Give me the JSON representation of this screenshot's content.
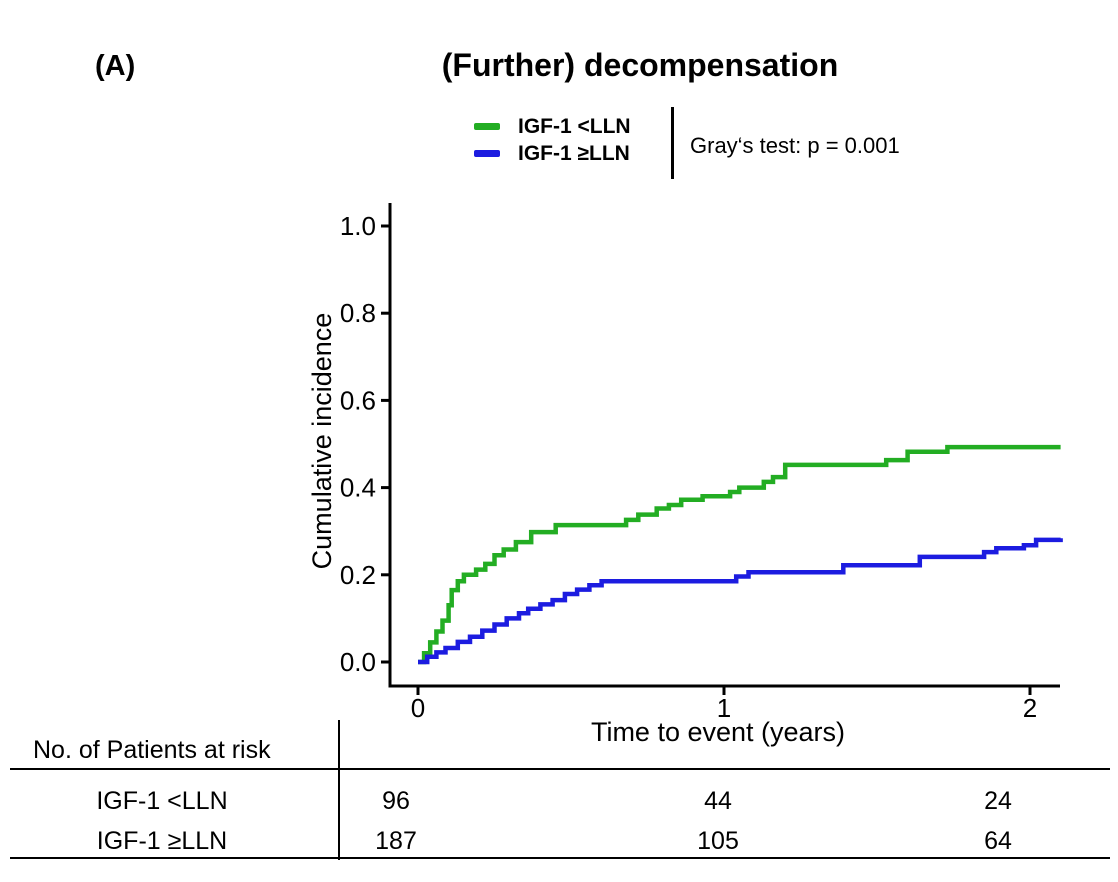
{
  "panel_label": "(A)",
  "title": "(Further) decompensation",
  "legend": {
    "items": [
      {
        "label": "IGF-1 <LLN",
        "color": "#23ad23"
      },
      {
        "label": "IGF-1 ≥LLN",
        "color": "#1c1ce0"
      }
    ],
    "stat_text": "Gray‘s test: p = 0.001"
  },
  "chart_data": {
    "type": "line",
    "subtype": "step-function-cumulative-incidence",
    "title": "(Further) decompensation",
    "xlabel": "Time to event (years)",
    "ylabel": "Cumulative incidence",
    "xlim": [
      0,
      2.1
    ],
    "ylim": [
      0.0,
      1.0
    ],
    "xticks": [
      "0",
      "1",
      "2"
    ],
    "yticks": [
      "0.0",
      "0.2",
      "0.4",
      "0.6",
      "0.8",
      "1.0"
    ],
    "grid": false,
    "legend_position": "top-center",
    "annotation": "Gray‘s test: p = 0.001",
    "series": [
      {
        "name": "IGF-1 <LLN",
        "color": "#23ad23",
        "points": [
          [
            0,
            0
          ],
          [
            0.02,
            0.02
          ],
          [
            0.04,
            0.045
          ],
          [
            0.06,
            0.07
          ],
          [
            0.08,
            0.095
          ],
          [
            0.1,
            0.13
          ],
          [
            0.11,
            0.165
          ],
          [
            0.13,
            0.185
          ],
          [
            0.15,
            0.2
          ],
          [
            0.19,
            0.212
          ],
          [
            0.22,
            0.225
          ],
          [
            0.25,
            0.245
          ],
          [
            0.28,
            0.258
          ],
          [
            0.32,
            0.275
          ],
          [
            0.37,
            0.298
          ],
          [
            0.45,
            0.314
          ],
          [
            0.68,
            0.326
          ],
          [
            0.72,
            0.338
          ],
          [
            0.78,
            0.352
          ],
          [
            0.82,
            0.36
          ],
          [
            0.86,
            0.372
          ],
          [
            0.93,
            0.38
          ],
          [
            1.02,
            0.39
          ],
          [
            1.05,
            0.4
          ],
          [
            1.13,
            0.413
          ],
          [
            1.16,
            0.424
          ],
          [
            1.2,
            0.452
          ],
          [
            1.53,
            0.463
          ],
          [
            1.6,
            0.482
          ],
          [
            1.73,
            0.493
          ],
          [
            2.1,
            0.493
          ]
        ]
      },
      {
        "name": "IGF-1 ≥LLN",
        "color": "#1c1ce0",
        "points": [
          [
            0,
            0
          ],
          [
            0.03,
            0.012
          ],
          [
            0.06,
            0.022
          ],
          [
            0.09,
            0.032
          ],
          [
            0.13,
            0.046
          ],
          [
            0.17,
            0.058
          ],
          [
            0.21,
            0.072
          ],
          [
            0.25,
            0.086
          ],
          [
            0.29,
            0.1
          ],
          [
            0.33,
            0.112
          ],
          [
            0.36,
            0.122
          ],
          [
            0.4,
            0.132
          ],
          [
            0.44,
            0.142
          ],
          [
            0.48,
            0.156
          ],
          [
            0.52,
            0.166
          ],
          [
            0.56,
            0.176
          ],
          [
            0.6,
            0.185
          ],
          [
            1.04,
            0.196
          ],
          [
            1.08,
            0.206
          ],
          [
            1.39,
            0.222
          ],
          [
            1.64,
            0.241
          ],
          [
            1.85,
            0.252
          ],
          [
            1.89,
            0.261
          ],
          [
            1.98,
            0.268
          ],
          [
            2.02,
            0.28
          ],
          [
            2.1,
            0.284
          ]
        ]
      }
    ]
  },
  "risk_table": {
    "header": "No. of Patients at risk",
    "time_points": [
      "0",
      "1",
      "2"
    ],
    "rows": [
      {
        "label": "IGF-1 <LLN",
        "counts": [
          "96",
          "44",
          "24"
        ]
      },
      {
        "label": "IGF-1 ≥LLN",
        "counts": [
          "187",
          "105",
          "64"
        ]
      }
    ]
  }
}
